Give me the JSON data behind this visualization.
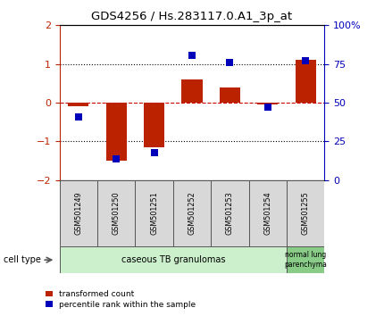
{
  "title": "GDS4256 / Hs.283117.0.A1_3p_at",
  "samples": [
    "GSM501249",
    "GSM501250",
    "GSM501251",
    "GSM501252",
    "GSM501253",
    "GSM501254",
    "GSM501255"
  ],
  "red_values": [
    -0.1,
    -1.5,
    -1.15,
    0.6,
    0.4,
    -0.05,
    1.1
  ],
  "blue_values": [
    -0.375,
    -1.45,
    -1.3,
    1.22,
    1.05,
    -0.12,
    1.08
  ],
  "ylim_left": [
    -2,
    2
  ],
  "ylim_right": [
    0,
    100
  ],
  "yticks_left": [
    -2,
    -1,
    0,
    1,
    2
  ],
  "yticks_right": [
    0,
    25,
    50,
    75,
    100
  ],
  "ytick_labels_right": [
    "0",
    "25",
    "50",
    "75",
    "100%"
  ],
  "red_color": "#bb2200",
  "blue_color": "#0000bb",
  "dashed_color": "#cc0000",
  "dotted_color": "#000000",
  "bar_width": 0.55,
  "group1_label": "caseous TB granulomas",
  "group2_label": "normal lung\nparenchyma",
  "group1_color": "#ccf0cc",
  "group2_color": "#88cc88",
  "sample_box_color": "#d8d8d8",
  "legend_red": "transformed count",
  "legend_blue": "percentile rank within the sample",
  "cell_type_label": "cell type"
}
